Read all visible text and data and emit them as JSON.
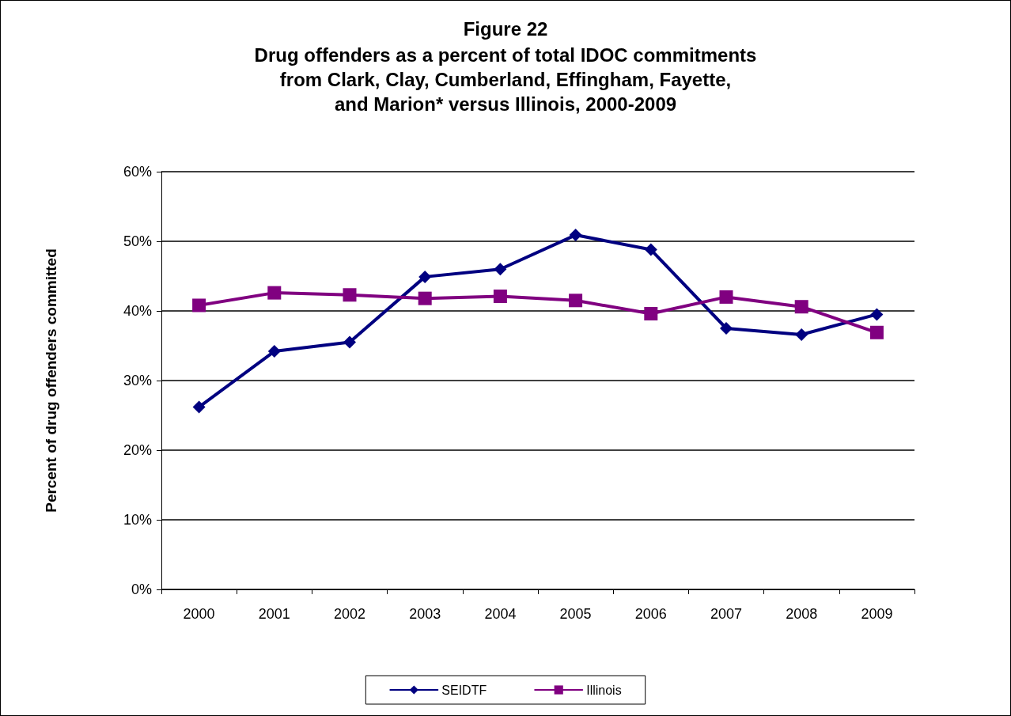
{
  "chart_data": {
    "type": "line",
    "title": "Figure 22",
    "subtitle": "Drug offenders as a percent of total IDOC commitments\nfrom Clark, Clay, Cumberland, Effingham, Fayette,\nand Marion* versus Illinois, 2000-2009",
    "ylabel": "Percent of drug offenders committed",
    "categories": [
      "2000",
      "2001",
      "2002",
      "2003",
      "2004",
      "2005",
      "2006",
      "2007",
      "2008",
      "2009"
    ],
    "series": [
      {
        "name": "SEIDTF",
        "color": "#000080",
        "marker": "diamond",
        "values": [
          26.2,
          34.2,
          35.5,
          44.9,
          46.0,
          50.9,
          48.8,
          37.5,
          36.6,
          39.5
        ]
      },
      {
        "name": "Illinois",
        "color": "#800080",
        "marker": "square",
        "values": [
          40.8,
          42.6,
          42.3,
          41.8,
          42.1,
          41.5,
          39.6,
          42.0,
          40.6,
          36.9
        ]
      }
    ],
    "ylim": [
      0,
      60
    ],
    "yticks": [
      {
        "value": 0,
        "label": "0%"
      },
      {
        "value": 10,
        "label": "10%"
      },
      {
        "value": 20,
        "label": "20%"
      },
      {
        "value": 30,
        "label": "30%"
      },
      {
        "value": 40,
        "label": "40%"
      },
      {
        "value": 50,
        "label": "50%"
      },
      {
        "value": 60,
        "label": "60%"
      }
    ],
    "grid": "y",
    "legend": "bottom",
    "line_style": "solid"
  }
}
